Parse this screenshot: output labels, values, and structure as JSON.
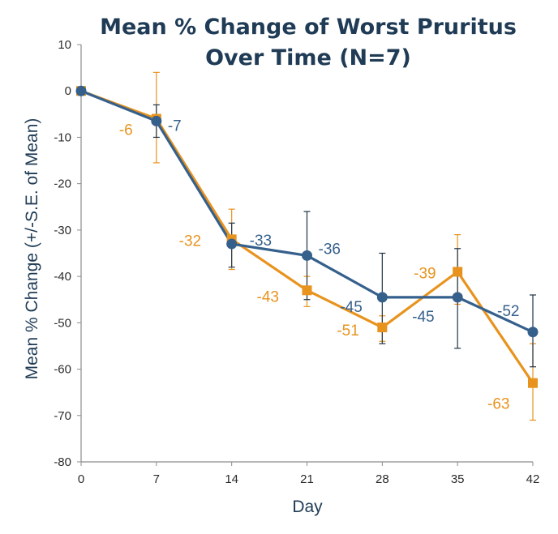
{
  "chart_data": {
    "type": "line",
    "title_lines": [
      "Mean % Change of Worst Pruritus",
      "Over Time (N=7)"
    ],
    "xlabel": "Day",
    "ylabel": "Mean % Change (+/-S.E. of Mean)",
    "x": [
      0,
      7,
      14,
      21,
      28,
      35,
      42
    ],
    "x_tick_labels": [
      "0",
      "7",
      "14",
      "21",
      "28",
      "35",
      "42"
    ],
    "xlim": [
      0,
      42
    ],
    "ylim": [
      -80,
      10
    ],
    "y_ticks": [
      10,
      0,
      -10,
      -20,
      -30,
      -40,
      -50,
      -60,
      -70,
      -80
    ],
    "y_tick_labels": [
      "10",
      "0",
      "-10",
      "-20",
      "-30",
      "-40",
      "-50",
      "-60",
      "-70",
      "-80"
    ],
    "grid": false,
    "legend": "none",
    "series": [
      {
        "name": "orange-series",
        "color": "#e8931d",
        "marker": "square",
        "values": [
          0,
          -6,
          -32,
          -43,
          -51,
          -39,
          -63
        ],
        "error_lower": [
          0,
          -15.5,
          -38.5,
          -46.5,
          -54,
          -46,
          -71
        ],
        "error_upper": [
          0,
          4,
          -25.5,
          -40,
          -48.5,
          -31,
          -54.5
        ],
        "labels": [
          "",
          "-6",
          "-32",
          "-43",
          "-51",
          "-39",
          "-63"
        ]
      },
      {
        "name": "blue-series",
        "color": "#36608c",
        "marker": "circle",
        "values": [
          0,
          -6.5,
          -33,
          -35.5,
          -44.5,
          -44.5,
          -52
        ],
        "error_lower": [
          0,
          -10,
          -38,
          -45,
          -54.5,
          -55.5,
          -59.5
        ],
        "error_upper": [
          0,
          -3,
          -28.5,
          -26,
          -35,
          -34,
          -44
        ],
        "labels": [
          "",
          "-7",
          "-33",
          "-36",
          "-45",
          "-45",
          "-52"
        ]
      }
    ]
  }
}
